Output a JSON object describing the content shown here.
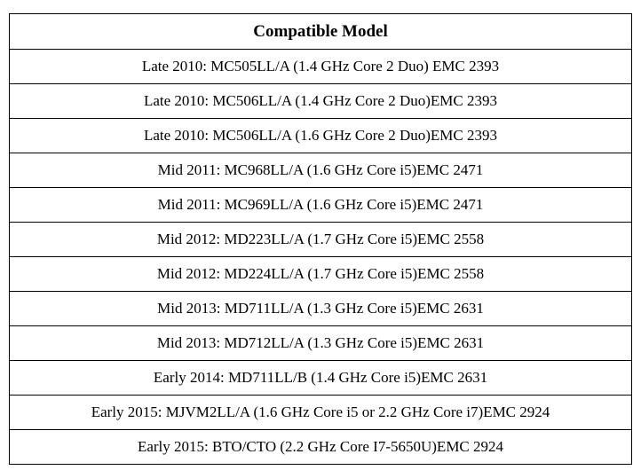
{
  "table": {
    "header": "Compatible Model",
    "rows": [
      "Late 2010: MC505LL/A (1.4 GHz Core 2 Duo) EMC 2393",
      "Late 2010: MC506LL/A (1.4 GHz Core 2 Duo)EMC 2393",
      "Late 2010: MC506LL/A (1.6 GHz Core 2 Duo)EMC 2393",
      "Mid 2011: MC968LL/A (1.6 GHz Core i5)EMC 2471",
      "Mid 2011: MC969LL/A (1.6 GHz Core i5)EMC 2471",
      "Mid 2012: MD223LL/A (1.7 GHz Core i5)EMC 2558",
      "Mid 2012: MD224LL/A (1.7 GHz Core i5)EMC 2558",
      "Mid 2013: MD711LL/A (1.3 GHz Core i5)EMC 2631",
      "Mid 2013: MD712LL/A (1.3 GHz Core i5)EMC 2631",
      "Early 2014: MD711LL/B (1.4 GHz Core i5)EMC 2631",
      "Early 2015: MJVM2LL/A (1.6 GHz Core i5 or 2.2 GHz Core i7)EMC 2924",
      "Early 2015: BTO/CTO (2.2 GHz Core I7-5650U)EMC 2924"
    ]
  }
}
